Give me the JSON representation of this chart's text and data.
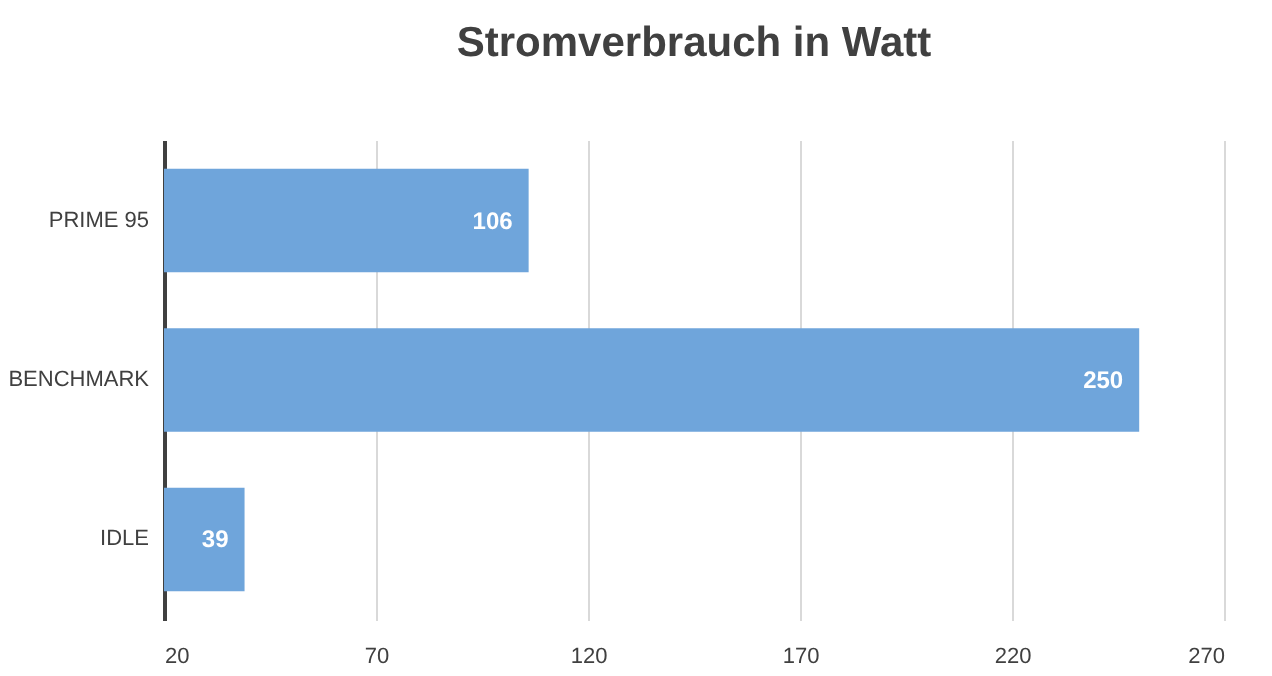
{
  "chart_data": {
    "type": "bar",
    "title": "Stromverbrauch in Watt",
    "orientation": "horizontal",
    "categories": [
      "PRIME 95",
      "BENCHMARK",
      "IDLE"
    ],
    "values": [
      106,
      250,
      39
    ],
    "color": "#6fa5db",
    "xlim": [
      20,
      270
    ],
    "xticks": [
      20,
      70,
      120,
      170,
      220,
      270
    ],
    "grid": "x",
    "data_labels": true
  }
}
